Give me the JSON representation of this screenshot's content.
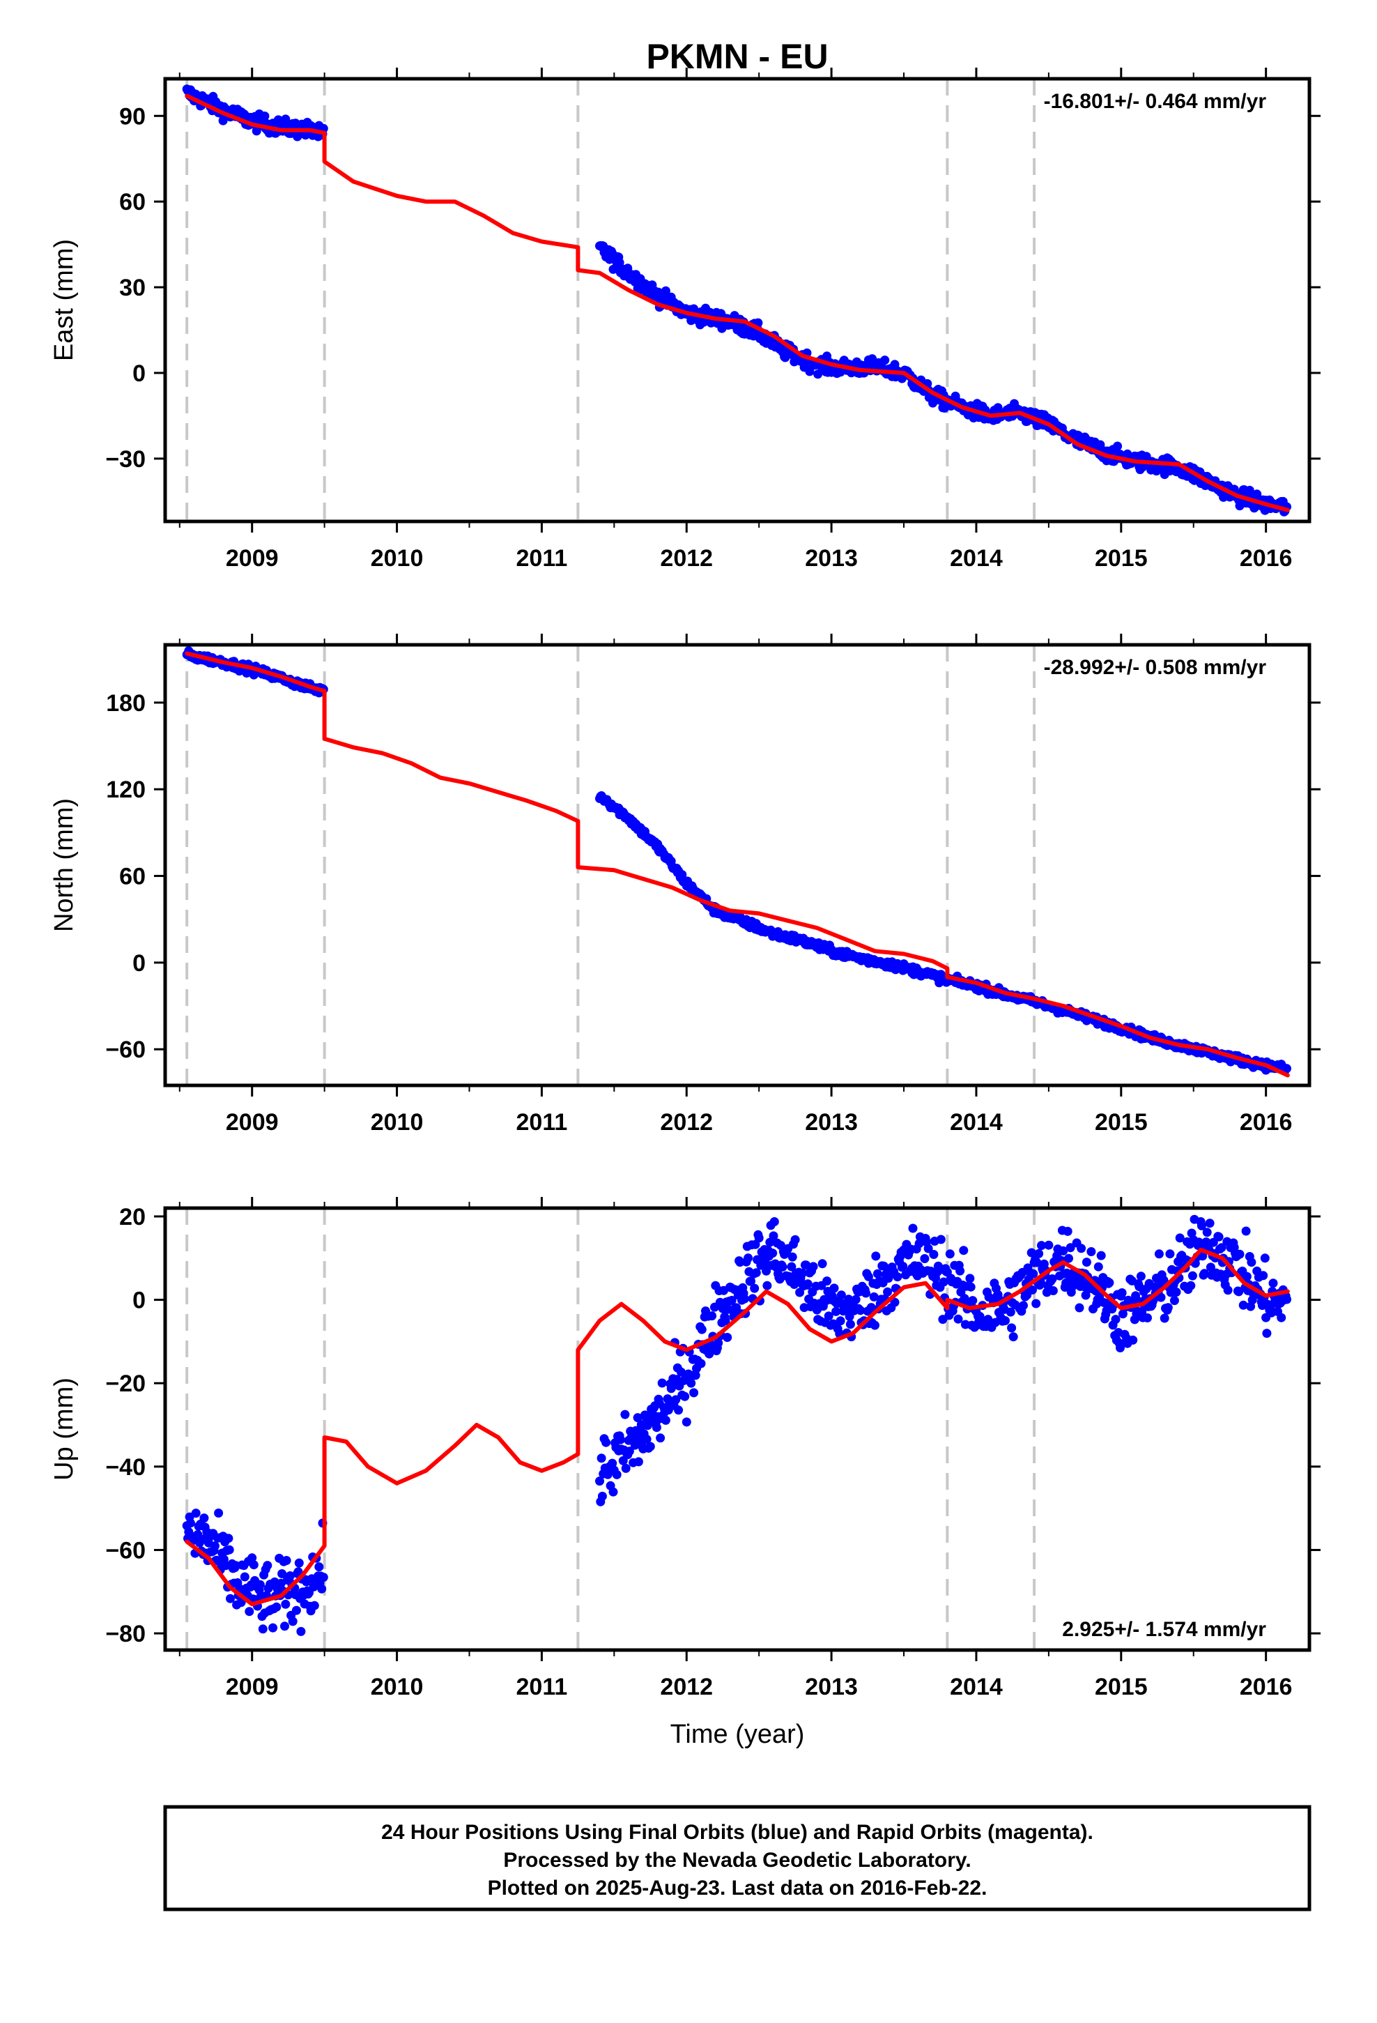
{
  "chart_data": {
    "title": "PKMN - EU",
    "xlabel": "Time (year)",
    "xlim": [
      2008.4,
      2016.3
    ],
    "x_ticks": [
      2009,
      2010,
      2011,
      2012,
      2013,
      2014,
      2015,
      2016
    ],
    "x_tick_labels": [
      "2009",
      "2010",
      "2011",
      "2012",
      "2013",
      "2014",
      "2015",
      "2016"
    ],
    "equipment_change_years": [
      2008.55,
      2009.5,
      2011.25,
      2013.8,
      2014.4
    ],
    "caption": [
      "24 Hour Positions Using Final Orbits (blue) and Rapid Orbits (magenta).",
      "Processed by the Nevada Geodetic Laboratory.",
      "Plotted on 2025-Aug-23. Last data on 2016-Feb-22."
    ],
    "colors": {
      "data": "#0000ff",
      "model": "#ff0000",
      "breaks": "#c8c8c8",
      "axes": "#000000"
    },
    "panels": [
      {
        "type": "scatter",
        "ylabel": "East (mm)",
        "ylim": [
          -52,
          103
        ],
        "y_ticks": [
          90,
          60,
          30,
          0,
          -30
        ],
        "y_tick_labels": [
          "90",
          "60",
          "30",
          "0",
          "−30"
        ],
        "rate_text": "-16.801+/- 0.464 mm/yr",
        "rate_position": "top-right",
        "scatter_noise": 2,
        "data": [
          [
            [
              2008.55,
              98
            ],
            [
              2008.8,
              92
            ],
            [
              2009.0,
              88
            ],
            [
              2009.2,
              86
            ],
            [
              2009.4,
              85
            ],
            [
              2009.5,
              83
            ]
          ],
          [
            [
              2011.4,
              44
            ],
            [
              2011.6,
              35
            ],
            [
              2011.8,
              27
            ],
            [
              2012.0,
              21
            ],
            [
              2012.3,
              18
            ],
            [
              2012.5,
              14
            ],
            [
              2012.7,
              7
            ],
            [
              2012.9,
              3
            ],
            [
              2013.0,
              2
            ],
            [
              2013.3,
              2
            ],
            [
              2013.5,
              0
            ],
            [
              2013.7,
              -8
            ],
            [
              2013.9,
              -12
            ],
            [
              2014.1,
              -15
            ],
            [
              2014.3,
              -14
            ],
            [
              2014.5,
              -18
            ],
            [
              2014.7,
              -24
            ],
            [
              2014.9,
              -28
            ],
            [
              2015.1,
              -31
            ],
            [
              2015.4,
              -33
            ],
            [
              2015.6,
              -38
            ],
            [
              2015.8,
              -43
            ],
            [
              2016.0,
              -46
            ],
            [
              2016.15,
              -47
            ]
          ]
        ],
        "model": [
          [
            [
              2008.55,
              97
            ],
            [
              2008.8,
              91
            ],
            [
              2009.0,
              87
            ],
            [
              2009.2,
              85
            ],
            [
              2009.4,
              85
            ],
            [
              2009.5,
              84
            ],
            [
              2009.5,
              74
            ],
            [
              2009.7,
              67
            ],
            [
              2010.0,
              62
            ],
            [
              2010.2,
              60
            ],
            [
              2010.4,
              60
            ],
            [
              2010.6,
              55
            ],
            [
              2010.8,
              49
            ],
            [
              2011.0,
              46
            ],
            [
              2011.25,
              44
            ],
            [
              2011.25,
              36
            ],
            [
              2011.4,
              35
            ],
            [
              2011.6,
              29
            ],
            [
              2011.8,
              24
            ],
            [
              2012.0,
              21
            ],
            [
              2012.2,
              19
            ],
            [
              2012.4,
              18
            ],
            [
              2012.6,
              13
            ],
            [
              2012.8,
              6
            ],
            [
              2013.0,
              3
            ],
            [
              2013.2,
              1
            ],
            [
              2013.5,
              0
            ],
            [
              2013.7,
              -7
            ],
            [
              2013.9,
              -12
            ],
            [
              2014.1,
              -15
            ],
            [
              2014.3,
              -14
            ],
            [
              2014.5,
              -18
            ],
            [
              2014.7,
              -25
            ],
            [
              2014.9,
              -29
            ],
            [
              2015.1,
              -31
            ],
            [
              2015.4,
              -32
            ],
            [
              2015.6,
              -38
            ],
            [
              2015.8,
              -43
            ],
            [
              2016.0,
              -46
            ],
            [
              2016.15,
              -48
            ]
          ]
        ]
      },
      {
        "type": "scatter",
        "ylabel": "North (mm)",
        "ylim": [
          -85,
          220
        ],
        "y_ticks": [
          180,
          120,
          60,
          0,
          -60
        ],
        "y_tick_labels": [
          "180",
          "120",
          "60",
          "0",
          "−60"
        ],
        "rate_text": "-28.992+/- 0.508 mm/yr",
        "rate_position": "top-right",
        "scatter_noise": 2,
        "data": [
          [
            [
              2008.55,
              213
            ],
            [
              2008.8,
              208
            ],
            [
              2009.0,
              203
            ],
            [
              2009.2,
              197
            ],
            [
              2009.4,
              190
            ],
            [
              2009.5,
              188
            ]
          ],
          [
            [
              2011.4,
              116
            ],
            [
              2011.6,
              100
            ],
            [
              2011.8,
              80
            ],
            [
              2012.0,
              55
            ],
            [
              2012.2,
              36
            ],
            [
              2012.4,
              28
            ],
            [
              2012.6,
              20
            ],
            [
              2012.8,
              15
            ],
            [
              2013.0,
              8
            ],
            [
              2013.2,
              3
            ],
            [
              2013.4,
              -1
            ],
            [
              2013.6,
              -6
            ],
            [
              2013.8,
              -12
            ],
            [
              2014.0,
              -16
            ],
            [
              2014.2,
              -22
            ],
            [
              2014.4,
              -27
            ],
            [
              2014.6,
              -33
            ],
            [
              2014.8,
              -39
            ],
            [
              2015.0,
              -45
            ],
            [
              2015.2,
              -52
            ],
            [
              2015.4,
              -57
            ],
            [
              2015.6,
              -62
            ],
            [
              2015.8,
              -67
            ],
            [
              2016.0,
              -71
            ],
            [
              2016.15,
              -74
            ]
          ]
        ],
        "model": [
          [
            [
              2008.55,
              214
            ],
            [
              2008.8,
              208
            ],
            [
              2009.0,
              204
            ],
            [
              2009.2,
              198
            ],
            [
              2009.4,
              191
            ],
            [
              2009.5,
              188
            ],
            [
              2009.5,
              155
            ],
            [
              2009.7,
              149
            ],
            [
              2009.9,
              145
            ],
            [
              2010.1,
              138
            ],
            [
              2010.3,
              128
            ],
            [
              2010.5,
              124
            ],
            [
              2010.7,
              118
            ],
            [
              2010.9,
              112
            ],
            [
              2011.1,
              105
            ],
            [
              2011.25,
              98
            ],
            [
              2011.25,
              66
            ],
            [
              2011.5,
              64
            ],
            [
              2011.7,
              58
            ],
            [
              2011.9,
              52
            ],
            [
              2012.1,
              43
            ],
            [
              2012.3,
              36
            ],
            [
              2012.5,
              34
            ],
            [
              2012.7,
              29
            ],
            [
              2012.9,
              24
            ],
            [
              2013.1,
              16
            ],
            [
              2013.3,
              8
            ],
            [
              2013.5,
              6
            ],
            [
              2013.7,
              1
            ],
            [
              2013.8,
              -4
            ],
            [
              2013.8,
              -10
            ],
            [
              2014.0,
              -14
            ],
            [
              2014.2,
              -21
            ],
            [
              2014.4,
              -25
            ],
            [
              2014.6,
              -30
            ],
            [
              2014.8,
              -37
            ],
            [
              2015.0,
              -44
            ],
            [
              2015.2,
              -52
            ],
            [
              2015.4,
              -57
            ],
            [
              2015.6,
              -60
            ],
            [
              2015.8,
              -66
            ],
            [
              2016.0,
              -71
            ],
            [
              2016.15,
              -78
            ]
          ]
        ]
      },
      {
        "type": "scatter",
        "ylabel": "Up (mm)",
        "ylim": [
          -84,
          22
        ],
        "y_ticks": [
          20,
          0,
          -20,
          -40,
          -60,
          -80
        ],
        "y_tick_labels": [
          "20",
          "0",
          "−20",
          "−40",
          "−60",
          "−80"
        ],
        "rate_text": "2.925+/- 1.574 mm/yr",
        "rate_position": "bottom-right",
        "scatter_noise": 6,
        "data": [
          [
            [
              2008.55,
              -56
            ],
            [
              2008.7,
              -58
            ],
            [
              2008.9,
              -68
            ],
            [
              2009.1,
              -72
            ],
            [
              2009.3,
              -70
            ],
            [
              2009.5,
              -65
            ]
          ],
          [
            [
              2011.4,
              -42
            ],
            [
              2011.6,
              -36
            ],
            [
              2011.8,
              -28
            ],
            [
              2012.0,
              -18
            ],
            [
              2012.2,
              -5
            ],
            [
              2012.4,
              5
            ],
            [
              2012.6,
              12
            ],
            [
              2012.8,
              5
            ],
            [
              2013.0,
              -3
            ],
            [
              2013.2,
              -2
            ],
            [
              2013.4,
              6
            ],
            [
              2013.6,
              10
            ],
            [
              2013.8,
              5
            ],
            [
              2014.0,
              -3
            ],
            [
              2014.2,
              -2
            ],
            [
              2014.4,
              5
            ],
            [
              2014.6,
              10
            ],
            [
              2014.8,
              5
            ],
            [
              2015.0,
              -4
            ],
            [
              2015.2,
              0
            ],
            [
              2015.4,
              6
            ],
            [
              2015.6,
              14
            ],
            [
              2015.8,
              8
            ],
            [
              2016.0,
              0
            ],
            [
              2016.15,
              -2
            ]
          ]
        ],
        "model": [
          [
            [
              2008.55,
              -58
            ],
            [
              2008.7,
              -62
            ],
            [
              2008.85,
              -69
            ],
            [
              2009.0,
              -73
            ],
            [
              2009.2,
              -71
            ],
            [
              2009.35,
              -66
            ],
            [
              2009.5,
              -59
            ],
            [
              2009.5,
              -33
            ],
            [
              2009.65,
              -34
            ],
            [
              2009.8,
              -40
            ],
            [
              2010.0,
              -44
            ],
            [
              2010.2,
              -41
            ],
            [
              2010.4,
              -35
            ],
            [
              2010.55,
              -30
            ],
            [
              2010.7,
              -33
            ],
            [
              2010.85,
              -39
            ],
            [
              2011.0,
              -41
            ],
            [
              2011.15,
              -39
            ],
            [
              2011.25,
              -37
            ],
            [
              2011.25,
              -12
            ],
            [
              2011.4,
              -5
            ],
            [
              2011.55,
              -1
            ],
            [
              2011.7,
              -5
            ],
            [
              2011.85,
              -10
            ],
            [
              2012.0,
              -12
            ],
            [
              2012.2,
              -9
            ],
            [
              2012.4,
              -3
            ],
            [
              2012.55,
              2
            ],
            [
              2012.7,
              -1
            ],
            [
              2012.85,
              -7
            ],
            [
              2013.0,
              -10
            ],
            [
              2013.15,
              -8
            ],
            [
              2013.3,
              -3
            ],
            [
              2013.5,
              3
            ],
            [
              2013.65,
              4
            ],
            [
              2013.8,
              -2
            ],
            [
              2013.8,
              0
            ],
            [
              2013.95,
              -2
            ],
            [
              2014.15,
              -1
            ],
            [
              2014.3,
              2
            ],
            [
              2014.5,
              7
            ],
            [
              2014.6,
              9
            ],
            [
              2014.75,
              6
            ],
            [
              2014.9,
              1
            ],
            [
              2015.0,
              -2
            ],
            [
              2015.15,
              -1
            ],
            [
              2015.3,
              3
            ],
            [
              2015.45,
              8
            ],
            [
              2015.55,
              12
            ],
            [
              2015.7,
              10
            ],
            [
              2015.85,
              4
            ],
            [
              2016.0,
              1
            ],
            [
              2016.15,
              2
            ]
          ]
        ]
      }
    ]
  }
}
